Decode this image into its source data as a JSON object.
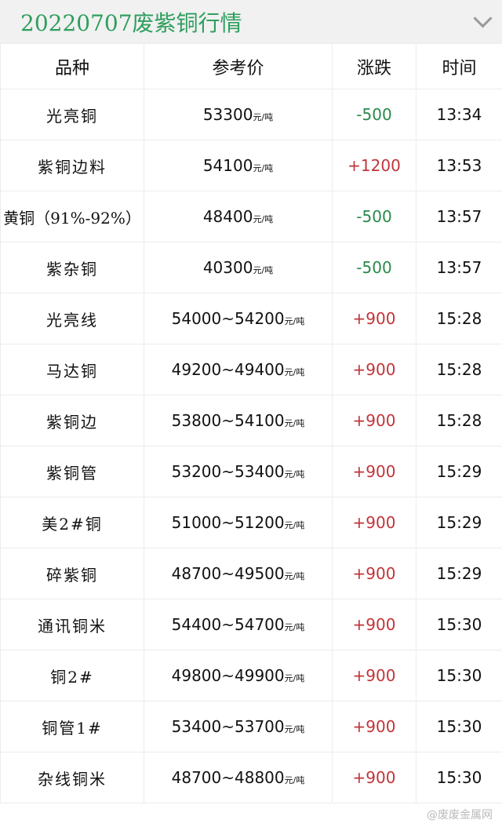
{
  "header": {
    "title": "20220707废紫铜行情",
    "collapse_icon": "chevron-down-icon"
  },
  "table": {
    "columns": [
      "品种",
      "参考价",
      "涨跌",
      "时间"
    ],
    "unit": "元/吨",
    "rows": [
      {
        "name": "光亮铜",
        "price": "53300",
        "change": "-500",
        "time": "13:34"
      },
      {
        "name": "紫铜边料",
        "price": "54100",
        "change": "+1200",
        "time": "13:53"
      },
      {
        "name": "黄铜（91%-92%）",
        "price": "48400",
        "change": "-500",
        "time": "13:57"
      },
      {
        "name": "紫杂铜",
        "price": "40300",
        "change": "-500",
        "time": "13:57"
      },
      {
        "name": "光亮线",
        "price": "54000~54200",
        "change": "+900",
        "time": "15:28"
      },
      {
        "name": "马达铜",
        "price": "49200~49400",
        "change": "+900",
        "time": "15:28"
      },
      {
        "name": "紫铜边",
        "price": "53800~54100",
        "change": "+900",
        "time": "15:28"
      },
      {
        "name": "紫铜管",
        "price": "53200~53400",
        "change": "+900",
        "time": "15:29"
      },
      {
        "name": "美2#铜",
        "price": "51000~51200",
        "change": "+900",
        "time": "15:29"
      },
      {
        "name": "碎紫铜",
        "price": "48700~49500",
        "change": "+900",
        "time": "15:29"
      },
      {
        "name": "通讯铜米",
        "price": "54400~54700",
        "change": "+900",
        "time": "15:30"
      },
      {
        "name": "铜2#",
        "price": "49800~49900",
        "change": "+900",
        "time": "15:30"
      },
      {
        "name": "铜管1#",
        "price": "53400~53700",
        "change": "+900",
        "time": "15:30"
      },
      {
        "name": "杂线铜米",
        "price": "48700~48800",
        "change": "+900",
        "time": "15:30"
      }
    ]
  },
  "colors": {
    "title": "#2f9e5e",
    "up": "#c0353a",
    "down": "#2a8a4a"
  },
  "watermark": "@废废金属网"
}
